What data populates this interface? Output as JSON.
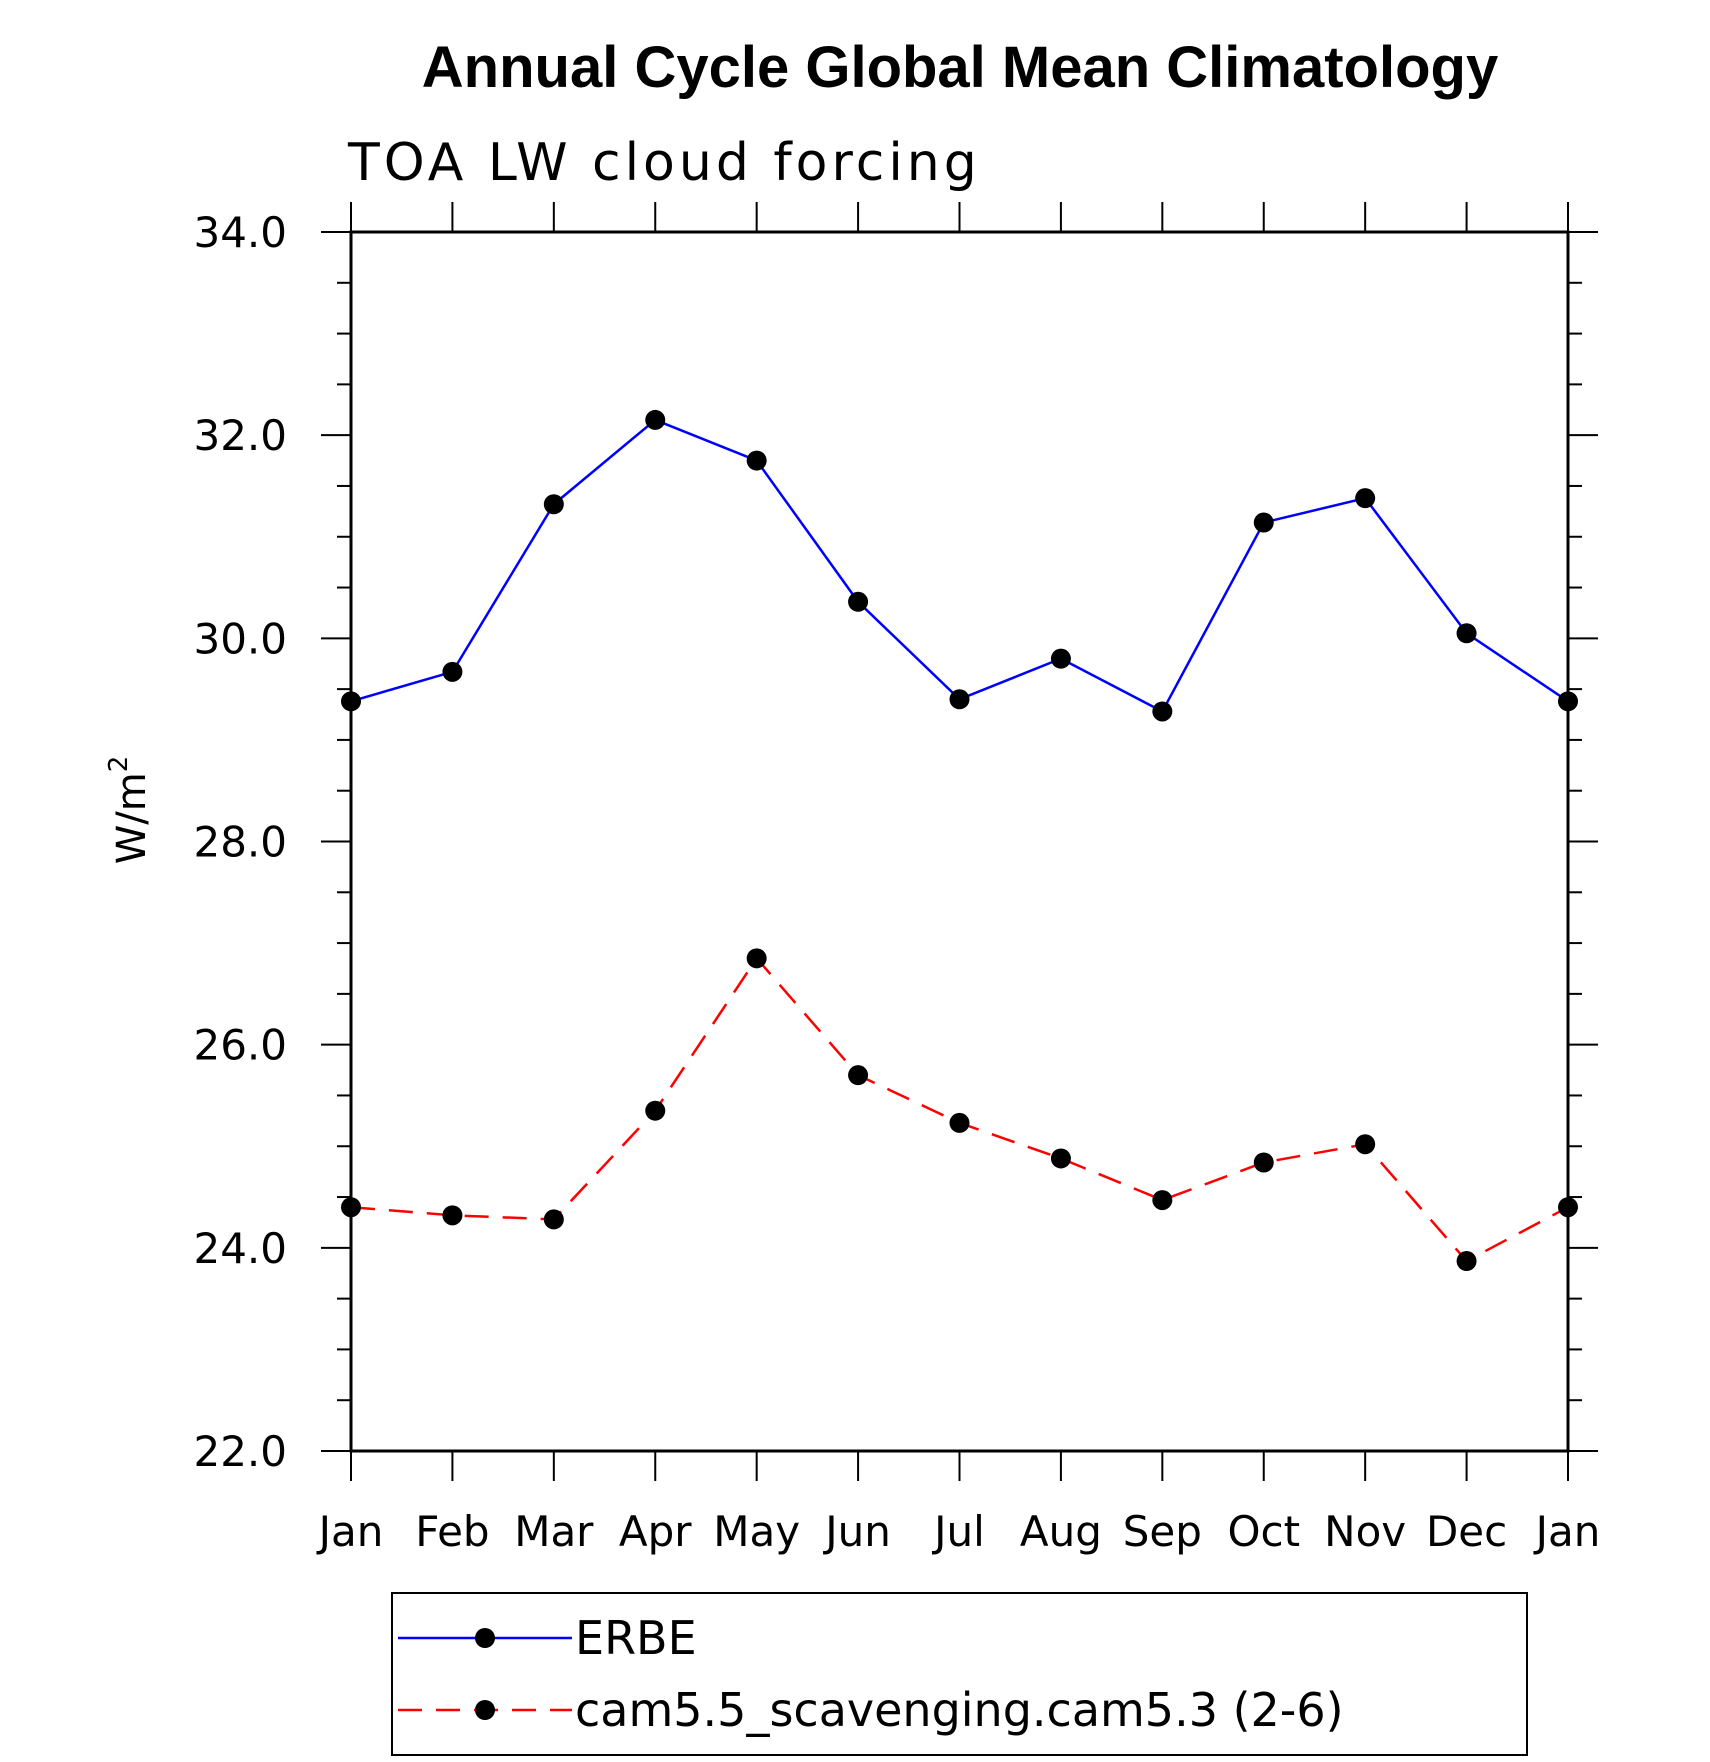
{
  "chart_data": {
    "type": "line",
    "title": "Annual Cycle Global Mean Climatology",
    "subtitle": "TOA LW cloud forcing",
    "ylabel": "W/m",
    "ylabel_sup": "2",
    "xlabel": "",
    "categories": [
      "Jan",
      "Feb",
      "Mar",
      "Apr",
      "May",
      "Jun",
      "Jul",
      "Aug",
      "Sep",
      "Oct",
      "Nov",
      "Dec",
      "Jan"
    ],
    "ylim": [
      22.0,
      34.0
    ],
    "yticks": [
      "22.0",
      "24.0",
      "26.0",
      "28.0",
      "30.0",
      "32.0",
      "34.0"
    ],
    "grid": false,
    "legend_position": "bottom",
    "series": [
      {
        "name": "ERBE",
        "color": "#0000ff",
        "dash": "solid",
        "marker": "circle",
        "values": [
          29.38,
          29.67,
          31.32,
          32.15,
          31.75,
          30.36,
          29.4,
          29.8,
          29.28,
          31.14,
          31.38,
          30.05,
          29.38
        ]
      },
      {
        "name": "cam5.5_scavenging.cam5.3 (2-6)",
        "color": "#ff0000",
        "dash": "dashed",
        "marker": "circle",
        "values": [
          24.4,
          24.32,
          24.28,
          25.35,
          26.85,
          25.7,
          25.23,
          24.88,
          24.47,
          24.84,
          25.02,
          23.87,
          24.4
        ]
      }
    ]
  }
}
